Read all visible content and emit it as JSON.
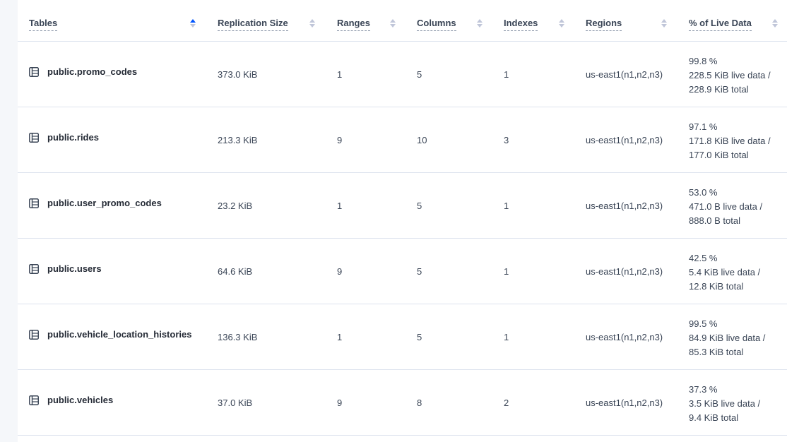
{
  "columns": [
    {
      "label": "Tables",
      "sort": "ascending"
    },
    {
      "label": "Replication Size",
      "sort": "none"
    },
    {
      "label": "Ranges",
      "sort": "none"
    },
    {
      "label": "Columns",
      "sort": "none"
    },
    {
      "label": "Indexes",
      "sort": "none"
    },
    {
      "label": "Regions",
      "sort": "none"
    },
    {
      "label": "% of Live Data",
      "sort": "none"
    }
  ],
  "rows": [
    {
      "name": "public.promo_codes",
      "size": "373.0 KiB",
      "ranges": "1",
      "columns": "5",
      "indexes": "1",
      "regions": "us-east1(n1,n2,n3)",
      "pct": "99.8 %",
      "live": "228.5 KiB live data /",
      "total": "228.9 KiB total"
    },
    {
      "name": "public.rides",
      "size": "213.3 KiB",
      "ranges": "9",
      "columns": "10",
      "indexes": "3",
      "regions": "us-east1(n1,n2,n3)",
      "pct": "97.1 %",
      "live": "171.8 KiB live data /",
      "total": "177.0 KiB total"
    },
    {
      "name": "public.user_promo_codes",
      "size": "23.2 KiB",
      "ranges": "1",
      "columns": "5",
      "indexes": "1",
      "regions": "us-east1(n1,n2,n3)",
      "pct": "53.0 %",
      "live": "471.0 B live data /",
      "total": "888.0 B total"
    },
    {
      "name": "public.users",
      "size": "64.6 KiB",
      "ranges": "9",
      "columns": "5",
      "indexes": "1",
      "regions": "us-east1(n1,n2,n3)",
      "pct": "42.5 %",
      "live": "5.4 KiB live data /",
      "total": "12.8 KiB total"
    },
    {
      "name": "public.vehicle_location_histories",
      "size": "136.3 KiB",
      "ranges": "1",
      "columns": "5",
      "indexes": "1",
      "regions": "us-east1(n1,n2,n3)",
      "pct": "99.5 %",
      "live": "84.9 KiB live data /",
      "total": "85.3 KiB total"
    },
    {
      "name": "public.vehicles",
      "size": "37.0 KiB",
      "ranges": "9",
      "columns": "8",
      "indexes": "2",
      "regions": "us-east1(n1,n2,n3)",
      "pct": "37.3 %",
      "live": "3.5 KiB live data /",
      "total": "9.4 KiB total"
    }
  ],
  "colors": {
    "accent": "#0055ff",
    "header_text": "#394455",
    "border": "#dde3ee"
  }
}
